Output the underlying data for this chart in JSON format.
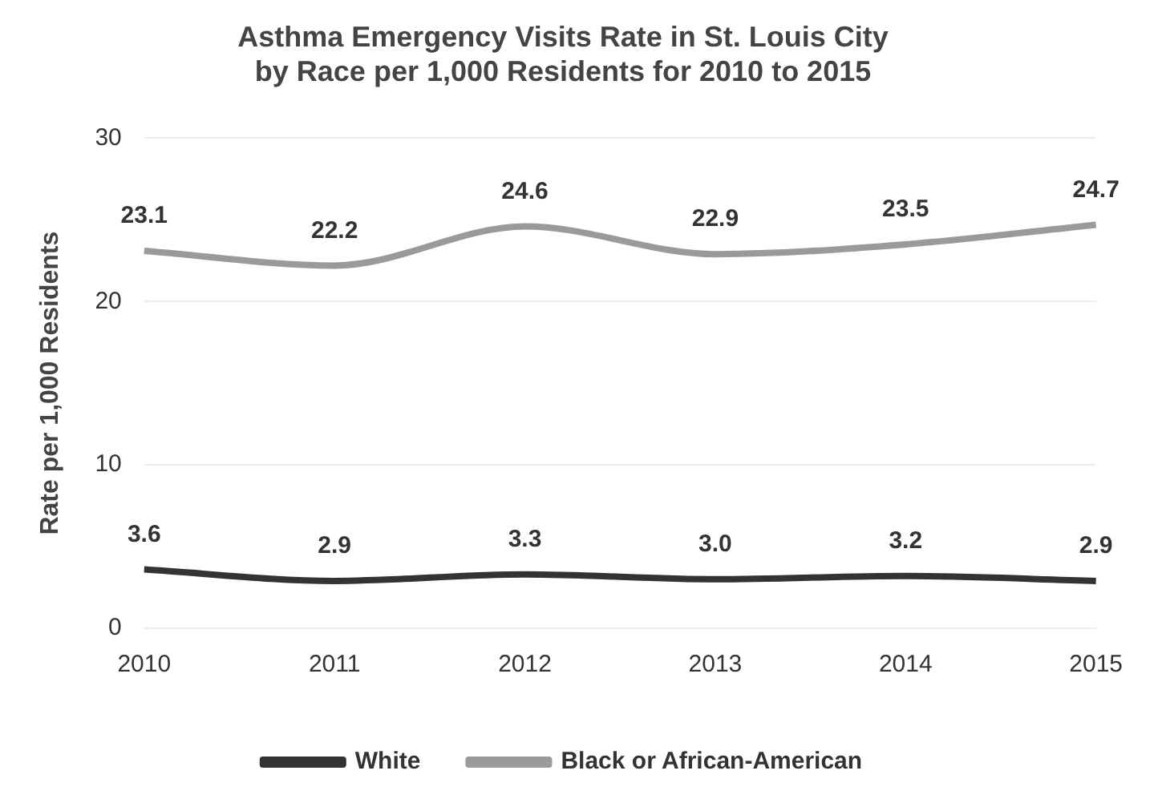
{
  "chart_data": {
    "type": "line",
    "title": "Asthma Emergency Visits Rate in St. Louis City\nby Race per 1,000 Residents for 2010 to 2015",
    "ylabel": "Rate per 1,000 Residents",
    "categories": [
      "2010",
      "2011",
      "2012",
      "2013",
      "2014",
      "2015"
    ],
    "series": [
      {
        "name": "White",
        "color": "#333333",
        "values": [
          3.6,
          2.9,
          3.3,
          3.0,
          3.2,
          2.9
        ],
        "value_labels": [
          "3.6",
          "2.9",
          "3.3",
          "3.0",
          "3.2",
          "2.9"
        ]
      },
      {
        "name": "Black or African-American",
        "color": "#9a9a9a",
        "values": [
          23.1,
          22.2,
          24.6,
          22.9,
          23.5,
          24.7
        ],
        "value_labels": [
          "23.1",
          "22.2",
          "24.6",
          "22.9",
          "23.5",
          "24.7"
        ]
      }
    ],
    "ylim": [
      0,
      30
    ],
    "yticks": [
      0,
      10,
      20,
      30
    ],
    "grid": "y",
    "legend": "bottom",
    "marker": "none",
    "line_style": "solid"
  }
}
